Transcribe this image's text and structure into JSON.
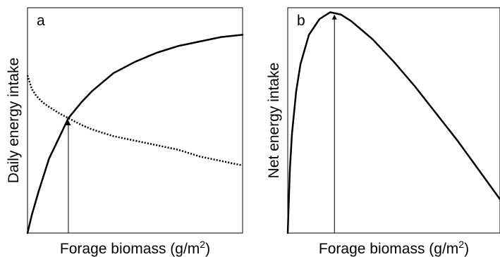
{
  "chart_data": [
    {
      "type": "line",
      "panel_label": "a",
      "xlabel": "Forage biomass (g/m²)",
      "ylabel": "Daily energy intake",
      "ticks": "none",
      "series": [
        {
          "style": "solid",
          "x": [
            0,
            0.02,
            0.05,
            0.1,
            0.15,
            0.19,
            0.25,
            0.3,
            0.4,
            0.5,
            0.6,
            0.7,
            0.8,
            0.9,
            1.0
          ],
          "values": [
            0.0,
            0.08,
            0.18,
            0.33,
            0.43,
            0.51,
            0.58,
            0.63,
            0.71,
            0.76,
            0.8,
            0.83,
            0.85,
            0.87,
            0.88
          ]
        },
        {
          "style": "dotted",
          "x": [
            0,
            0.01,
            0.02,
            0.04,
            0.07,
            0.1,
            0.15,
            0.19,
            0.25,
            0.3,
            0.4,
            0.5,
            0.6,
            0.7,
            0.8,
            0.9,
            1.0
          ],
          "values": [
            0.7,
            0.67,
            0.64,
            0.61,
            0.58,
            0.56,
            0.53,
            0.51,
            0.48,
            0.46,
            0.43,
            0.41,
            0.39,
            0.37,
            0.34,
            0.32,
            0.3
          ]
        }
      ],
      "annotations": [
        {
          "type": "arrow",
          "x": 0.19,
          "from_y": 0,
          "to_y": 0.5
        }
      ]
    },
    {
      "type": "line",
      "panel_label": "b",
      "xlabel": "Forage biomass (g/m²)",
      "ylabel": "Net energy intake",
      "ticks": "none",
      "series": [
        {
          "style": "solid",
          "x": [
            0,
            0.01,
            0.02,
            0.04,
            0.06,
            0.1,
            0.15,
            0.2,
            0.25,
            0.3,
            0.4,
            0.5,
            0.6,
            0.7,
            0.8,
            0.9,
            1.0
          ],
          "values": [
            0.0,
            0.28,
            0.44,
            0.63,
            0.75,
            0.88,
            0.95,
            0.98,
            0.97,
            0.94,
            0.86,
            0.76,
            0.65,
            0.53,
            0.41,
            0.28,
            0.15
          ]
        }
      ],
      "annotations": [
        {
          "type": "arrow",
          "x": 0.22,
          "from_y": 0,
          "to_y": 0.97
        }
      ]
    }
  ]
}
